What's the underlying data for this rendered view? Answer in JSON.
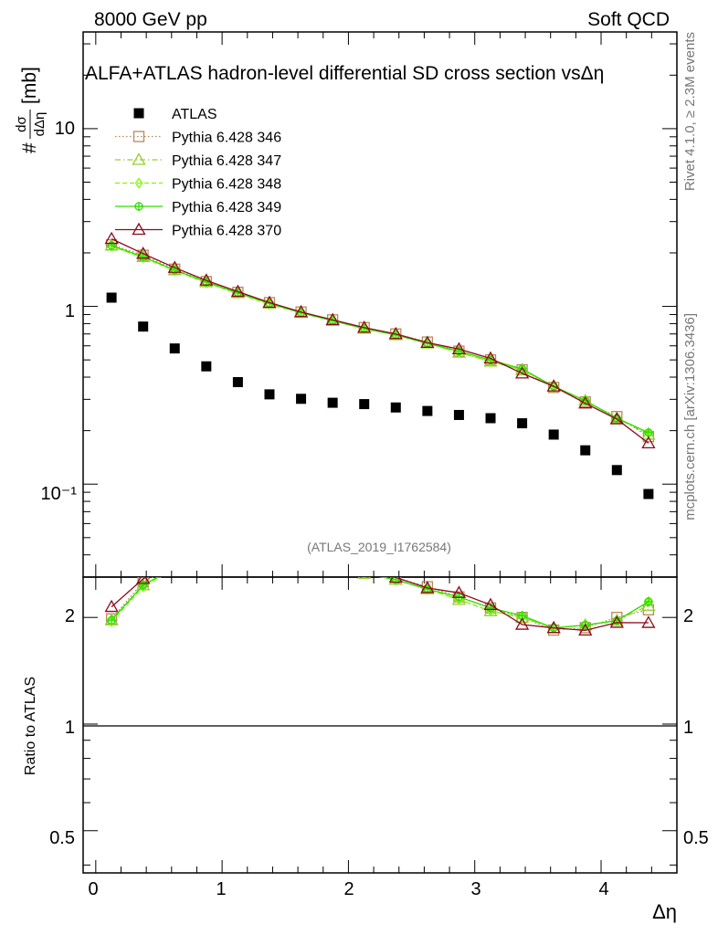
{
  "header": {
    "left": "8000 GeV pp",
    "right": "Soft QCD"
  },
  "side_text": {
    "rivet": "Rivet 4.1.0, ≥ 2.3M events",
    "mcplots": "mcplots.cern.ch [arXiv:1306.3436]"
  },
  "chart_data": {
    "type": "scatter",
    "title": "ALFA+ATLAS hadron-level differential SD cross section vsΔη",
    "watermark": "(ATLAS_2019_I1762584)",
    "xlabel": "Δη",
    "ylabel": "#dσ/dΔη [mb]",
    "ylabel_parts": {
      "prefix": "#",
      "num": "dσ",
      "den": "dΔη",
      "unit": "[mb]"
    },
    "ratio_ylabel": "Ratio to ATLAS",
    "xlim": [
      -0.1,
      4.6
    ],
    "ylim_log": [
      0.03,
      35
    ],
    "ratio_ylim_log": [
      0.38,
      2.6
    ],
    "x_ticks": [
      "0",
      "1",
      "2",
      "3",
      "4"
    ],
    "y_ticks": [
      "10",
      "1",
      "10⁻¹"
    ],
    "ratio_ticks": [
      "2",
      "1",
      "0.5"
    ],
    "x": [
      0.125,
      0.375,
      0.625,
      0.875,
      1.125,
      1.375,
      1.625,
      1.875,
      2.125,
      2.375,
      2.625,
      2.875,
      3.125,
      3.375,
      3.625,
      3.875,
      4.125,
      4.375
    ],
    "data": {
      "name": "ATLAS",
      "values": [
        1.12,
        0.77,
        0.58,
        0.46,
        0.375,
        0.32,
        0.302,
        0.287,
        0.282,
        0.27,
        0.258,
        0.245,
        0.235,
        0.22,
        0.19,
        0.155,
        0.12,
        0.088
      ]
    },
    "series": [
      {
        "name": "Pythia 6.428 346",
        "color": "#b8895a",
        "marker": "square",
        "dash": "1.5,2.5",
        "values": [
          2.22,
          1.94,
          1.62,
          1.38,
          1.2,
          1.05,
          0.93,
          0.84,
          0.76,
          0.7,
          0.63,
          0.56,
          0.5,
          0.44,
          0.35,
          0.29,
          0.24,
          0.185
        ]
      },
      {
        "name": "Pythia 6.428 347",
        "color": "#9acd32",
        "marker": "triangle",
        "dash": "6,3,1.5,3",
        "values": [
          2.2,
          1.9,
          1.6,
          1.37,
          1.19,
          1.04,
          0.92,
          0.83,
          0.75,
          0.69,
          0.62,
          0.55,
          0.49,
          0.44,
          0.355,
          0.295,
          0.235,
          0.19
        ]
      },
      {
        "name": "Pythia 6.428 348",
        "color": "#7cfc00",
        "marker": "diamond",
        "dash": "5,3",
        "values": [
          2.18,
          1.88,
          1.59,
          1.36,
          1.18,
          1.03,
          0.92,
          0.83,
          0.75,
          0.69,
          0.62,
          0.55,
          0.49,
          0.44,
          0.355,
          0.295,
          0.235,
          0.195
        ]
      },
      {
        "name": "Pythia 6.428 349",
        "color": "#2fdf00",
        "marker": "plus",
        "dash": "",
        "values": [
          2.2,
          1.9,
          1.6,
          1.37,
          1.19,
          1.04,
          0.92,
          0.83,
          0.75,
          0.69,
          0.62,
          0.56,
          0.5,
          0.445,
          0.355,
          0.295,
          0.235,
          0.195
        ]
      },
      {
        "name": "Pythia 6.428 370",
        "color": "#8b0a1a",
        "marker": "triangle",
        "dash": "",
        "values": [
          2.4,
          1.98,
          1.65,
          1.4,
          1.21,
          1.05,
          0.93,
          0.84,
          0.76,
          0.7,
          0.625,
          0.575,
          0.51,
          0.42,
          0.355,
          0.285,
          0.232,
          0.17
        ]
      }
    ]
  }
}
